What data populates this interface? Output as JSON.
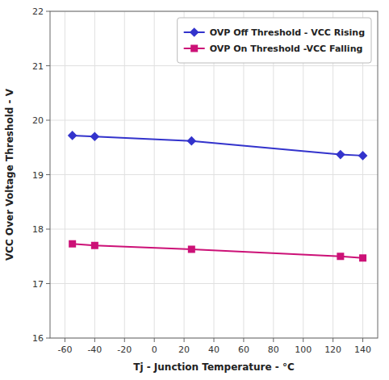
{
  "chart_data": {
    "type": "line",
    "xlabel": "Tj - Junction Temperature -  °C",
    "ylabel": "VCC Over Voltage Threshold - V",
    "x": [
      -55,
      -40,
      25,
      125,
      140
    ],
    "series": [
      {
        "name": "OVP Off Threshold - VCC Rising",
        "color": "#3333CC",
        "marker": "diamond",
        "values": [
          19.72,
          19.7,
          19.62,
          19.37,
          19.35
        ]
      },
      {
        "name": "OVP On Threshold -VCC Falling",
        "color": "#CC1177",
        "marker": "square",
        "values": [
          17.73,
          17.7,
          17.63,
          17.5,
          17.47
        ]
      }
    ],
    "xlim": [
      -70,
      150
    ],
    "ylim": [
      16,
      22
    ],
    "xticks": [
      -60,
      -40,
      -20,
      0,
      20,
      40,
      60,
      80,
      100,
      120,
      140
    ],
    "yticks": [
      16,
      17,
      18,
      19,
      20,
      21,
      22
    ],
    "grid": true,
    "legend": "upper right"
  }
}
